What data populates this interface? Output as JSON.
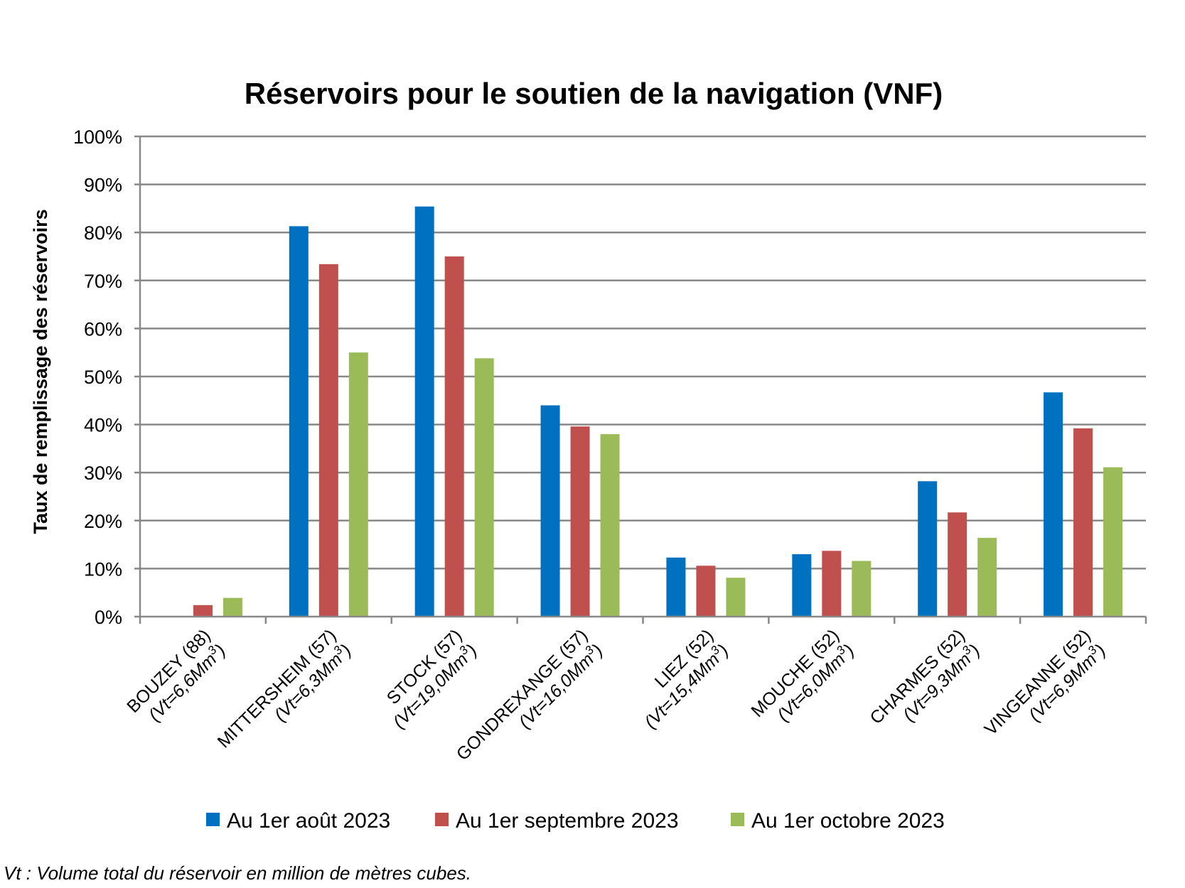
{
  "chart_data": {
    "type": "bar",
    "title": "Réservoirs pour le soutien de la navigation (VNF)",
    "ylabel": "Taux de remplissage des réservoirs",
    "xlabel": "",
    "ylim": [
      0,
      100
    ],
    "yticks": [
      "0%",
      "10%",
      "20%",
      "30%",
      "40%",
      "50%",
      "60%",
      "70%",
      "80%",
      "90%",
      "100%"
    ],
    "categories": [
      {
        "name": "BOUZEY (88)",
        "volume": "(Vt=6,6Mm",
        "sup": "3",
        "close": ")"
      },
      {
        "name": "MITTERSHEIM (57)",
        "volume": "(Vt=6,3Mm",
        "sup": "3",
        "close": ")"
      },
      {
        "name": "STOCK (57)",
        "volume": "(Vt=19,0Mm",
        "sup": "3",
        "close": ")"
      },
      {
        "name": "GONDREXANGE (57)",
        "volume": "(Vt=16,0Mm",
        "sup": "3",
        "close": ")"
      },
      {
        "name": "LIEZ (52)",
        "volume": "(Vt=15,4Mm",
        "sup": "3",
        "close": ")"
      },
      {
        "name": "MOUCHE (52)",
        "volume": "(Vt=6,0Mm",
        "sup": "3",
        "close": ")"
      },
      {
        "name": "CHARMES (52)",
        "volume": "(Vt=9,3Mm",
        "sup": "3",
        "close": ")"
      },
      {
        "name": "VINGEANNE (52)",
        "volume": "(Vt=6,9Mm",
        "sup": "3",
        "close": ")"
      }
    ],
    "series": [
      {
        "name": "Au 1er août 2023",
        "color": "#0070C0",
        "values": [
          0,
          81.3,
          85.4,
          44.0,
          12.3,
          13.0,
          28.2,
          46.7
        ]
      },
      {
        "name": "Au 1er septembre 2023",
        "color": "#C0504D",
        "values": [
          2.4,
          73.4,
          75.0,
          39.6,
          10.6,
          13.7,
          21.7,
          39.2
        ]
      },
      {
        "name": "Au 1er octobre 2023",
        "color": "#9BBB59",
        "values": [
          3.9,
          55.0,
          53.8,
          38.0,
          8.1,
          11.6,
          16.4,
          31.1
        ]
      }
    ],
    "grid": true,
    "legend": "bottom"
  },
  "footnote": "Vt : Volume total du réservoir en million de mètres cubes."
}
